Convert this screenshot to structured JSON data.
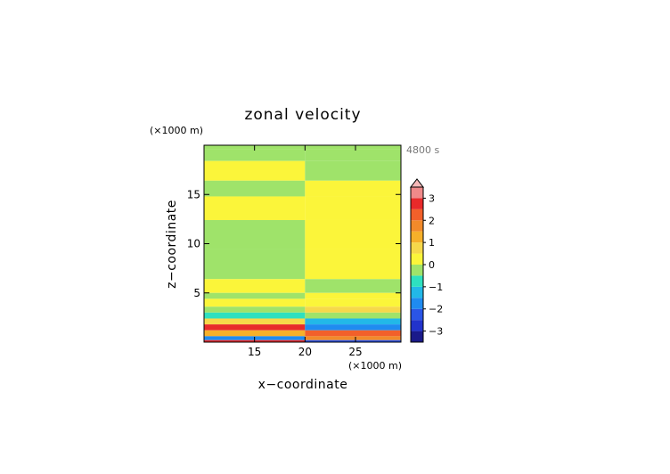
{
  "chart_data": {
    "type": "heatmap",
    "title": "zonal velocity",
    "xlabel": "x−coordinate",
    "ylabel": "z−coordinate",
    "x_unit": "(×1000 m)",
    "y_unit": "(×1000 m)",
    "time_label": "4800 s",
    "xlim": [
      10,
      29.5
    ],
    "ylim": [
      0,
      20
    ],
    "x_ticks": [
      15,
      20,
      25
    ],
    "y_ticks": [
      5,
      10,
      15
    ],
    "colorbar": {
      "levels": [
        {
          "from": -3.5,
          "to": -3.0,
          "color": "#1a1a8a"
        },
        {
          "from": -3.0,
          "to": -2.5,
          "color": "#2233cc"
        },
        {
          "from": -2.5,
          "to": -2.0,
          "color": "#2a55e6"
        },
        {
          "from": -2.0,
          "to": -1.5,
          "color": "#1f8bf0"
        },
        {
          "from": -1.5,
          "to": -1.0,
          "color": "#22b8e8"
        },
        {
          "from": -1.0,
          "to": -0.5,
          "color": "#2ee0c0"
        },
        {
          "from": -0.5,
          "to": 0.0,
          "color": "#9fe36a"
        },
        {
          "from": 0.0,
          "to": 0.5,
          "color": "#fbf53a"
        },
        {
          "from": 0.5,
          "to": 1.0,
          "color": "#f6d84a"
        },
        {
          "from": 1.0,
          "to": 1.5,
          "color": "#f6b02a"
        },
        {
          "from": 1.5,
          "to": 2.0,
          "color": "#f28a2a"
        },
        {
          "from": 2.0,
          "to": 2.5,
          "color": "#f2602a"
        },
        {
          "from": 2.5,
          "to": 3.0,
          "color": "#e82a2a"
        },
        {
          "from": 3.0,
          "to": 3.5,
          "color": "#f08a8a"
        }
      ],
      "overflow_color": "#f6b8b8",
      "tick_values": [
        3,
        2,
        1,
        0,
        -1,
        -2,
        -3
      ],
      "tick_labels": [
        "3",
        "2",
        "1",
        "0",
        "−1",
        "−2",
        "−3"
      ]
    },
    "bands": [
      {
        "z": [
          19.6,
          20.0
        ],
        "left": "#9fe36a",
        "right": "#9fe36a"
      },
      {
        "z": [
          18.4,
          19.6
        ],
        "left": "#9fe36a",
        "right": "#9fe36a"
      },
      {
        "z": [
          16.4,
          18.4
        ],
        "left": "#fbf53a",
        "right": "#9fe36a"
      },
      {
        "z": [
          14.8,
          16.4
        ],
        "left": "#9fe36a",
        "right": "#fbf53a"
      },
      {
        "z": [
          12.4,
          14.8
        ],
        "left": "#fbf53a",
        "right": "#fbf53a"
      },
      {
        "z": [
          9.5,
          12.4
        ],
        "left": "#9fe36a",
        "right": "#fbf53a"
      },
      {
        "z": [
          6.4,
          9.5
        ],
        "left": "#9fe36a",
        "right": "#fbf53a"
      },
      {
        "z": [
          5.0,
          6.4
        ],
        "left": "#fbf53a",
        "right": "#9fe36a"
      },
      {
        "z": [
          4.4,
          5.0
        ],
        "left": "#9fe36a",
        "right": "#fbf53a"
      },
      {
        "z": [
          3.6,
          4.4
        ],
        "left": "#fbf53a",
        "right": "#fbf53a"
      },
      {
        "z": [
          3.0,
          3.6
        ],
        "left": "#9fe36a",
        "right": "#f6d84a"
      },
      {
        "z": [
          2.4,
          3.0
        ],
        "left": "#2ee0c0",
        "right": "#9fe36a"
      },
      {
        "z": [
          1.8,
          2.4
        ],
        "left": "#f6d84a",
        "right": "#22b8e8"
      },
      {
        "z": [
          1.2,
          1.8
        ],
        "left": "#e82a2a",
        "right": "#1f8bf0"
      },
      {
        "z": [
          0.6,
          1.2
        ],
        "left": "#f6b02a",
        "right": "#f2602a"
      },
      {
        "z": [
          0.2,
          0.6
        ],
        "left": "#1f8bf0",
        "right": "#f28a2a"
      },
      {
        "z": [
          0.0,
          0.2
        ],
        "left": "#e82a2a",
        "right": "#2a55e6"
      }
    ]
  }
}
